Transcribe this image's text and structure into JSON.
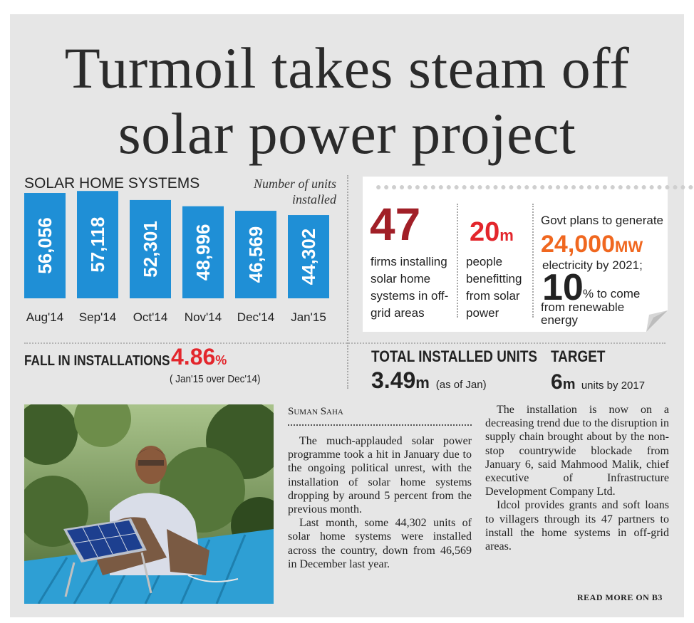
{
  "headline": {
    "line1": "Turmoil takes steam off",
    "line2": "solar power project"
  },
  "chart_data": {
    "type": "bar",
    "title": "SOLAR HOME SYSTEMS",
    "note": "Number of units installed",
    "categories": [
      "Aug'14",
      "Sep'14",
      "Oct'14",
      "Nov'14",
      "Dec'14",
      "Jan'15"
    ],
    "values": [
      56056,
      57118,
      52301,
      48996,
      46569,
      44302
    ],
    "value_labels": [
      "56,056",
      "57,118",
      "52,301",
      "48,996",
      "46,569",
      "44,302"
    ],
    "bar_color": "#1f8fd6"
  },
  "fall": {
    "label": "FALL IN INSTALLATIONS",
    "value": "4.86",
    "unit": "%",
    "note": "( Jan'15 over Dec'14)"
  },
  "facts": {
    "firms": {
      "value": "47",
      "text": "firms installing solar home systems in off-grid areas"
    },
    "people": {
      "value": "20",
      "unit": "m",
      "text": "people benefitting from solar power"
    },
    "govt": {
      "intro": "Govt plans to generate",
      "value": "24,000",
      "unit": "MW",
      "text": "electricity by 2021;",
      "share_value": "10",
      "share_unit": "% to come",
      "share_text": "from renewable energy"
    }
  },
  "total": {
    "label": "TOTAL INSTALLED UNITS",
    "value": "3.49",
    "unit": "m",
    "note": "(as of Jan)"
  },
  "target": {
    "label": "TARGET",
    "value": "6",
    "unit": "m",
    "note": "units by 2017"
  },
  "colors": {
    "red": "#e3262c",
    "dark_red": "#a11f27",
    "orange": "#f0671f",
    "blue": "#1f8fd6"
  },
  "article": {
    "byline": "Suman Saha",
    "paragraphs": [
      "The much-applauded solar power programme took a hit in January due to the ongoing political unrest, with the installation of solar home systems dropping by around 5 percent from the previous month.",
      "Last month, some 44,302 units of solar home systems were installed across the country, down from 46,569 in December last year.",
      "The installation is now on a decreasing trend due to the disruption in supply chain brought about by the non-stop countrywide blockade from January 6, said Mahmood Malik, chief executive of Infrastructure Development Company Ltd.",
      "Idcol provides grants and soft loans to villagers through its 47 partners to install the home systems in off-grid areas."
    ],
    "read_more": "READ MORE ON B3"
  }
}
